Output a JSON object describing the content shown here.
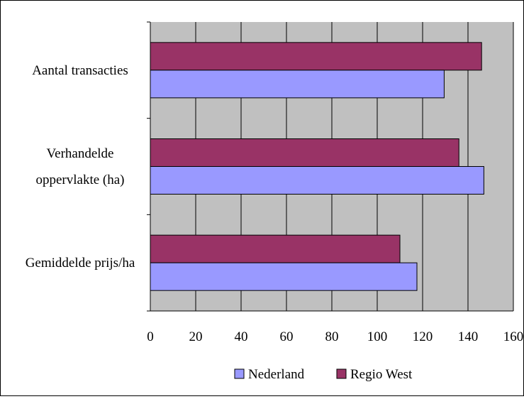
{
  "chart_data": {
    "type": "bar",
    "orientation": "horizontal",
    "categories": [
      [
        "Aantal transacties"
      ],
      [
        "Verhandelde",
        "oppervlakte (ha)"
      ],
      [
        "Gemiddelde prijs/ha"
      ]
    ],
    "series": [
      {
        "name": "Nederland",
        "color": "#9999ff",
        "values": [
          129.5,
          147,
          117.5
        ]
      },
      {
        "name": "Regio West",
        "color": "#993366",
        "values": [
          146,
          136,
          110
        ]
      }
    ],
    "xlim": [
      0,
      160
    ],
    "xticks": [
      "0",
      "20",
      "40",
      "60",
      "80",
      "100",
      "120",
      "140",
      "160"
    ],
    "plot_background": "#c0c0c0",
    "grid": true,
    "legend_position": "bottom"
  }
}
